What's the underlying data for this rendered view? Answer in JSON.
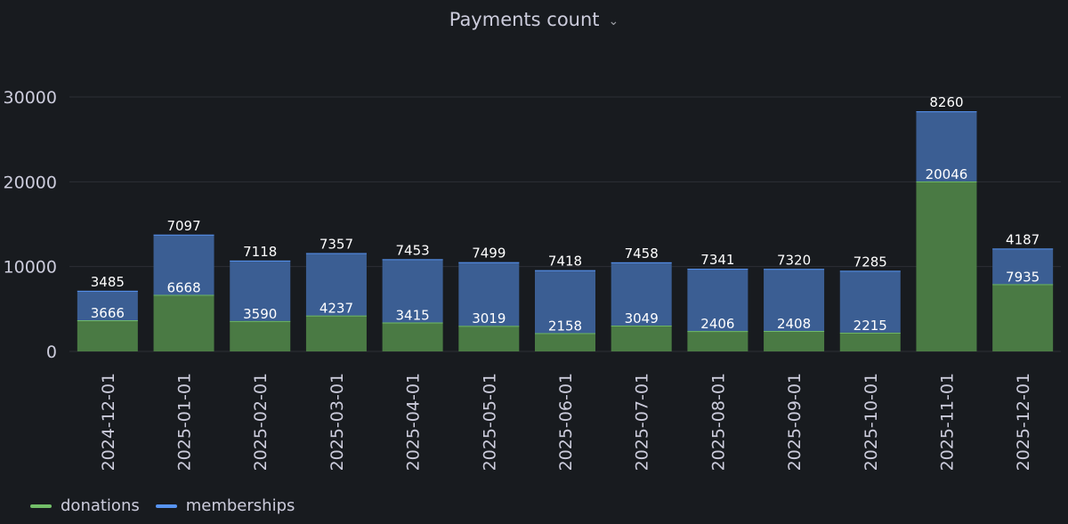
{
  "panel": {
    "title": "Payments count",
    "menu_icon": "chevron-down-icon"
  },
  "colors": {
    "background": "#181b1f",
    "donations": "#73bf69",
    "memberships": "#5794f2",
    "donations_fill": "#4a7a44",
    "memberships_fill": "#3b5e93",
    "grid": "#2c2f35",
    "text": "#ccccdc"
  },
  "chart_data": {
    "type": "bar",
    "stacked": true,
    "title": "Payments count",
    "categories": [
      "2024-12-01",
      "2025-01-01",
      "2025-02-01",
      "2025-03-01",
      "2025-04-01",
      "2025-05-01",
      "2025-06-01",
      "2025-07-01",
      "2025-08-01",
      "2025-09-01",
      "2025-10-01",
      "2025-11-01",
      "2025-12-01"
    ],
    "series": [
      {
        "name": "donations",
        "values": [
          3666,
          6668,
          3590,
          4237,
          3415,
          3019,
          2158,
          3049,
          2406,
          2408,
          2215,
          20046,
          7935
        ]
      },
      {
        "name": "memberships",
        "values": [
          3485,
          7097,
          7118,
          7357,
          7453,
          7499,
          7418,
          7458,
          7341,
          7320,
          7285,
          8260,
          4187
        ]
      }
    ],
    "ylim": [
      0,
      33500
    ],
    "yticks": [
      0,
      10000,
      20000,
      30000
    ],
    "grid": true,
    "legend_position": "bottom-left",
    "xlabel": "",
    "ylabel": ""
  },
  "legend": [
    {
      "label": "donations"
    },
    {
      "label": "memberships"
    }
  ]
}
